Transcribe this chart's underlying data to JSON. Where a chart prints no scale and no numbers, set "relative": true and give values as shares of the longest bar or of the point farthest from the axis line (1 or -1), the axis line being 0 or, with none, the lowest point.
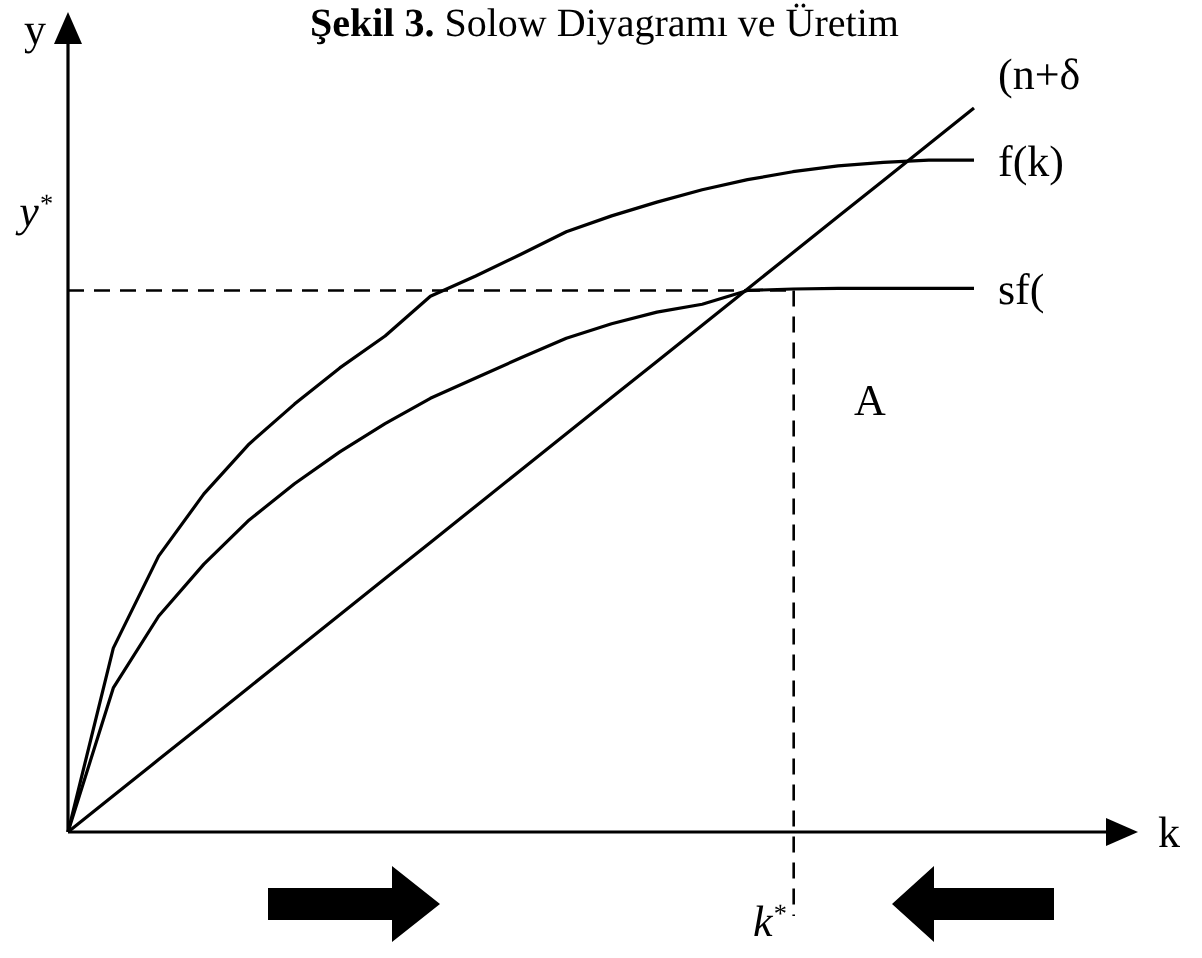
{
  "chart_data": {
    "type": "line",
    "relative": true,
    "title": "Şekil 3. Solow Diyagramı ve Üretim",
    "xlabel": "k",
    "ylabel": "y",
    "categories": [
      null,
      null,
      null,
      null,
      null,
      null,
      null,
      null,
      null,
      null,
      null,
      null,
      null,
      null,
      null,
      null,
      null,
      null,
      null,
      null,
      null
    ],
    "marker": "none",
    "line_style": "solid",
    "series": [
      {
        "name": "(n+δ",
        "color": "#000000",
        "values": [
          0,
          0.05,
          0.1,
          0.15,
          0.2,
          0.25,
          0.3,
          0.35,
          0.4,
          0.45,
          0.5,
          0.55,
          0.6,
          0.65,
          0.7,
          0.75,
          0.8,
          0.85,
          0.9,
          0.95,
          1
        ]
      },
      {
        "name": "f(k)",
        "color": "#000000",
        "values": [
          0,
          0.254,
          0.381,
          0.467,
          0.536,
          0.591,
          0.641,
          0.685,
          0.74,
          0.768,
          0.798,
          0.829,
          0.851,
          0.87,
          0.887,
          0.901,
          0.912,
          0.92,
          0.925,
          0.928,
          0.928
        ]
      },
      {
        "name": "sf(",
        "color": "#000000",
        "values": [
          0,
          0.199,
          0.298,
          0.37,
          0.431,
          0.481,
          0.525,
          0.564,
          0.599,
          0.627,
          0.655,
          0.682,
          0.702,
          0.718,
          0.729,
          0.748,
          0.75,
          0.751,
          0.751,
          0.751,
          0.751
        ]
      }
    ],
    "ref_lines": [
      {
        "axis": "y",
        "value": 0.748,
        "label": "y$^{*}$",
        "line_style": "dashed"
      },
      {
        "axis": "x",
        "label": "k$^{*}$",
        "line_style": "dashed"
      }
    ],
    "annotations": [
      "A"
    ]
  }
}
